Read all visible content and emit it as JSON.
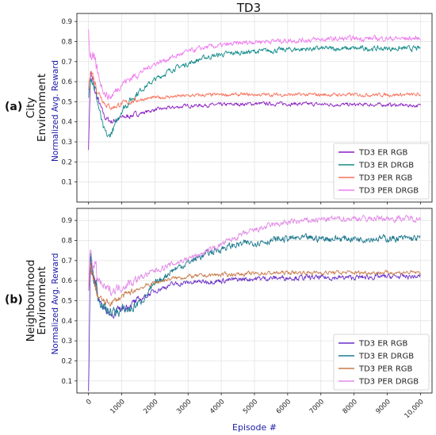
{
  "figure": {
    "title": "TD3",
    "xlabel": "Episode #"
  },
  "chart_data": [
    {
      "type": "line",
      "panel_label": "(a)",
      "environment_label": [
        "City",
        "Environment"
      ],
      "ylabel": "Normalized Avg. Reward",
      "xlim": [
        -350,
        10350
      ],
      "ylim": [
        0.0,
        0.94
      ],
      "yticks": [
        0.1,
        0.2,
        0.3,
        0.4,
        0.5,
        0.6,
        0.7,
        0.8,
        0.9
      ],
      "xticks": [
        0,
        1000,
        2000,
        3000,
        4000,
        5000,
        6000,
        7000,
        8000,
        9000,
        10000
      ],
      "xticklabels": [
        "0",
        "1000",
        "2000",
        "3000",
        "4000",
        "5000",
        "6000",
        "7000",
        "8000",
        "9000",
        "10,000"
      ],
      "grid": true,
      "legend_position": "lower right",
      "series": [
        {
          "name": "TD3 ER RGB",
          "color": "#8a1fc4",
          "noise": 0.007,
          "x": [
            0,
            60,
            150,
            300,
            500,
            700,
            1000,
            1500,
            2000,
            3000,
            4000,
            5000,
            6000,
            7000,
            8000,
            9000,
            10000
          ],
          "y": [
            0.26,
            0.66,
            0.57,
            0.5,
            0.42,
            0.4,
            0.42,
            0.44,
            0.46,
            0.48,
            0.485,
            0.49,
            0.49,
            0.487,
            0.485,
            0.485,
            0.48
          ]
        },
        {
          "name": "TD3 ER DRGB",
          "color": "#138a8a",
          "noise": 0.01,
          "x": [
            0,
            60,
            150,
            300,
            450,
            600,
            800,
            1000,
            1500,
            2000,
            2500,
            3000,
            3500,
            4000,
            4500,
            5000,
            5500,
            6000,
            7000,
            8000,
            9000,
            10000
          ],
          "y": [
            0.52,
            0.66,
            0.6,
            0.48,
            0.36,
            0.32,
            0.38,
            0.46,
            0.55,
            0.61,
            0.66,
            0.69,
            0.72,
            0.735,
            0.745,
            0.75,
            0.755,
            0.76,
            0.765,
            0.765,
            0.765,
            0.765
          ]
        },
        {
          "name": "TD3 PER RGB",
          "color": "#f8705a",
          "noise": 0.007,
          "x": [
            0,
            60,
            150,
            300,
            500,
            700,
            1000,
            1500,
            2000,
            3000,
            4000,
            5000,
            6000,
            7000,
            8000,
            9000,
            10000
          ],
          "y": [
            0.56,
            0.67,
            0.62,
            0.55,
            0.49,
            0.47,
            0.49,
            0.51,
            0.52,
            0.53,
            0.535,
            0.535,
            0.535,
            0.535,
            0.535,
            0.535,
            0.535
          ]
        },
        {
          "name": "TD3 PER DRGB",
          "color": "#f07cf0",
          "noise": 0.01,
          "x": [
            0,
            40,
            100,
            200,
            350,
            500,
            650,
            800,
            1000,
            1500,
            2000,
            2500,
            3000,
            3500,
            4000,
            5000,
            6000,
            7000,
            8000,
            9000,
            10000
          ],
          "y": [
            0.86,
            0.75,
            0.73,
            0.68,
            0.6,
            0.54,
            0.52,
            0.55,
            0.59,
            0.64,
            0.69,
            0.72,
            0.75,
            0.77,
            0.78,
            0.8,
            0.805,
            0.81,
            0.815,
            0.815,
            0.815
          ]
        }
      ]
    },
    {
      "type": "line",
      "panel_label": "(b)",
      "environment_label": [
        "Neighbourhood",
        "Environment"
      ],
      "ylabel": "Normalized Avg. Reward",
      "xlim": [
        -350,
        10350
      ],
      "ylim": [
        0.04,
        0.96
      ],
      "yticks": [
        0.1,
        0.2,
        0.3,
        0.4,
        0.5,
        0.6,
        0.7,
        0.8,
        0.9
      ],
      "xticks": [
        0,
        1000,
        2000,
        3000,
        4000,
        5000,
        6000,
        7000,
        8000,
        9000,
        10000
      ],
      "xticklabels": [
        "0",
        "1000",
        "2000",
        "3000",
        "4000",
        "5000",
        "6000",
        "7000",
        "8000",
        "9000",
        "10,000"
      ],
      "grid": true,
      "legend_position": "lower right",
      "series": [
        {
          "name": "TD3 ER RGB",
          "color": "#6a2fc8",
          "noise": 0.01,
          "x": [
            0,
            60,
            150,
            300,
            500,
            700,
            1000,
            1500,
            2000,
            2500,
            3000,
            4000,
            5000,
            6000,
            7000,
            8000,
            9000,
            10000
          ],
          "y": [
            0.05,
            0.72,
            0.62,
            0.52,
            0.45,
            0.43,
            0.46,
            0.5,
            0.55,
            0.58,
            0.59,
            0.6,
            0.61,
            0.615,
            0.615,
            0.615,
            0.62,
            0.62
          ]
        },
        {
          "name": "TD3 ER DRGB",
          "color": "#1f7a8f",
          "noise": 0.014,
          "x": [
            0,
            60,
            150,
            300,
            500,
            700,
            1000,
            1300,
            1600,
            2000,
            2500,
            3000,
            3500,
            4000,
            4500,
            5000,
            5500,
            6000,
            7000,
            8000,
            9000,
            10000
          ],
          "y": [
            0.55,
            0.72,
            0.62,
            0.52,
            0.46,
            0.44,
            0.45,
            0.46,
            0.5,
            0.58,
            0.65,
            0.69,
            0.73,
            0.76,
            0.78,
            0.79,
            0.8,
            0.81,
            0.81,
            0.81,
            0.81,
            0.81
          ]
        },
        {
          "name": "TD3 PER RGB",
          "color": "#c87a4a",
          "noise": 0.008,
          "x": [
            0,
            60,
            150,
            300,
            500,
            700,
            1000,
            1500,
            2000,
            2500,
            3000,
            4000,
            5000,
            6000,
            7000,
            8000,
            9000,
            10000
          ],
          "y": [
            0.55,
            0.68,
            0.6,
            0.52,
            0.49,
            0.49,
            0.52,
            0.56,
            0.59,
            0.61,
            0.62,
            0.63,
            0.635,
            0.64,
            0.64,
            0.64,
            0.64,
            0.64
          ]
        },
        {
          "name": "TD3 PER DRGB",
          "color": "#e28ae8",
          "noise": 0.012,
          "x": [
            0,
            60,
            150,
            300,
            500,
            700,
            1000,
            1500,
            2000,
            2500,
            3000,
            3500,
            4000,
            4500,
            5000,
            5500,
            6000,
            7000,
            8000,
            9000,
            10000
          ],
          "y": [
            0.55,
            0.76,
            0.68,
            0.6,
            0.56,
            0.55,
            0.57,
            0.61,
            0.65,
            0.68,
            0.71,
            0.74,
            0.78,
            0.82,
            0.85,
            0.875,
            0.89,
            0.905,
            0.91,
            0.91,
            0.91
          ]
        }
      ]
    }
  ]
}
